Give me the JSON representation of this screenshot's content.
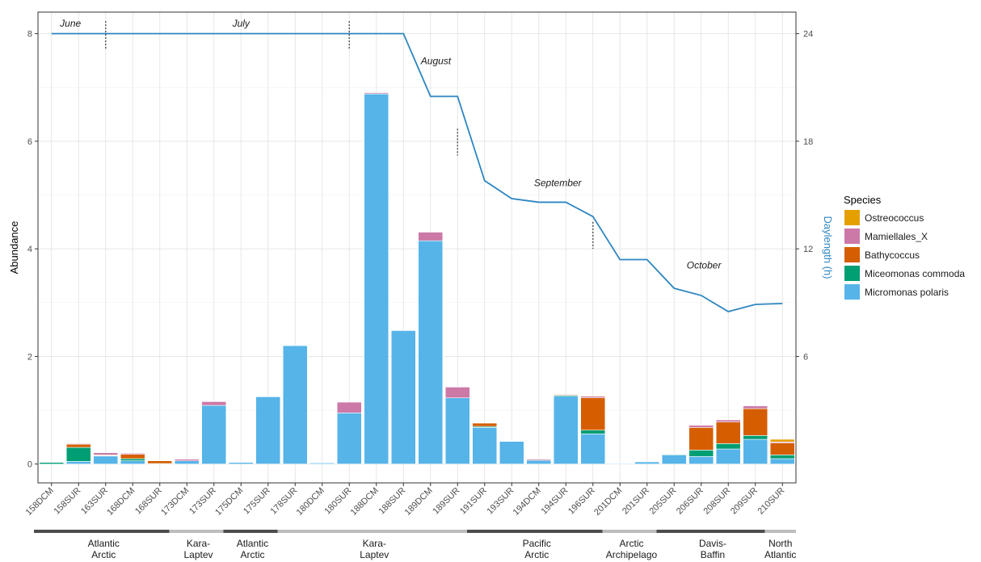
{
  "chart_data": {
    "type": "bar",
    "stacked": true,
    "categories": [
      "158DCM",
      "158SUR",
      "163SUR",
      "168DCM",
      "168SUR",
      "173DCM",
      "173SUR",
      "175DCM",
      "175SUR",
      "178SUR",
      "180DCM",
      "180SUR",
      "188DCM",
      "188SUR",
      "189DCM",
      "189SUR",
      "191SUR",
      "193SUR",
      "194DCM",
      "194SUR",
      "196SUR",
      "201DCM",
      "201SUR",
      "205SUR",
      "206SUR",
      "208SUR",
      "209SUR",
      "210SUR"
    ],
    "series": [
      {
        "name": "Micromonas polaris",
        "color": "#56b4e9",
        "values": [
          0,
          0.05,
          0.15,
          0.06,
          0,
          0.06,
          1.09,
          0.03,
          1.25,
          2.2,
          0.02,
          0.95,
          6.88,
          2.48,
          4.15,
          1.23,
          0.68,
          0.42,
          0.07,
          1.26,
          0.56,
          0.01,
          0.04,
          0.17,
          0.14,
          0.28,
          0.46,
          0.1
        ]
      },
      {
        "name": "Miceomonas commoda",
        "color": "#009e73",
        "values": [
          0.03,
          0.26,
          0.01,
          0.04,
          0.01,
          0,
          0,
          0,
          0,
          0,
          0,
          0,
          0,
          0,
          0,
          0,
          0.02,
          0,
          0,
          0.02,
          0.07,
          0,
          0,
          0.01,
          0.12,
          0.1,
          0.07,
          0.07
        ]
      },
      {
        "name": "Bathycoccus",
        "color": "#d55e00",
        "values": [
          0,
          0.06,
          0.01,
          0.08,
          0.05,
          0,
          0,
          0,
          0,
          0,
          0,
          0,
          0,
          0,
          0,
          0,
          0.06,
          0,
          0,
          0.01,
          0.6,
          0,
          0,
          0,
          0.42,
          0.4,
          0.5,
          0.22
        ]
      },
      {
        "name": "Mamiellales_X",
        "color": "#cc79a7",
        "values": [
          0,
          0.01,
          0.04,
          0.02,
          0,
          0.03,
          0.07,
          0,
          0,
          0,
          0,
          0.2,
          0.02,
          0,
          0.16,
          0.2,
          0,
          0,
          0.02,
          0.01,
          0.03,
          0,
          0,
          0,
          0.04,
          0.04,
          0.05,
          0.02
        ]
      },
      {
        "name": "Ostreococcus",
        "color": "#e69f00",
        "values": [
          0,
          0,
          0,
          0,
          0,
          0,
          0,
          0,
          0,
          0,
          0,
          0,
          0,
          0,
          0,
          0,
          0,
          0,
          0,
          0,
          0.01,
          0,
          0,
          0,
          0,
          0,
          0,
          0.05
        ]
      }
    ],
    "daylength": {
      "label": "Daylength (h)",
      "color": "#2e86c1",
      "values": [
        24,
        24,
        24,
        24,
        24,
        24,
        24,
        24,
        24,
        24,
        24,
        24,
        24,
        24,
        20.5,
        20.5,
        15.8,
        14.8,
        14.6,
        14.6,
        13.8,
        11.4,
        11.4,
        9.8,
        9.4,
        8.5,
        8.9,
        8.95
      ]
    },
    "ylabel": "Abundance",
    "ylim": [
      -0.35,
      8.4
    ],
    "yticks": [
      0,
      2,
      4,
      6,
      8
    ],
    "y2label": "Daylength (h)",
    "y2ticks": [
      6,
      12,
      18,
      24
    ],
    "y2lim": [
      -1.05,
      25.2
    ],
    "grid": true,
    "legend": {
      "title": "Species",
      "position": "right",
      "items": [
        "Ostreococcus",
        "Mamiellales_X",
        "Bathycoccus",
        "Miceomonas commoda",
        "Micromonas polaris"
      ]
    },
    "months": [
      {
        "label": "June",
        "at": 0.7,
        "value_h": 24.4
      },
      {
        "label": "July",
        "at": 7.0,
        "value_h": 24.4
      },
      {
        "label": "August",
        "at": 14.2,
        "value_h": 22.3
      },
      {
        "label": "September",
        "at": 18.7,
        "value_h": 15.5
      },
      {
        "label": "October",
        "at": 24.1,
        "value_h": 10.9
      }
    ],
    "month_dividers": [
      {
        "at": 2.5,
        "from_h": 23.1,
        "to_h": 24.7
      },
      {
        "at": 11.5,
        "from_h": 23.1,
        "to_h": 24.7
      },
      {
        "at": 15.5,
        "from_h": 17.2,
        "to_h": 18.7
      },
      {
        "at": 20.5,
        "from_h": 12.0,
        "to_h": 13.5
      }
    ],
    "regions": [
      {
        "lines": [
          "Atlantic",
          "Arctic"
        ],
        "start": 0,
        "end": 4,
        "shade": "dark"
      },
      {
        "lines": [
          "Kara-",
          "Laptev"
        ],
        "start": 5,
        "end": 6,
        "shade": "light"
      },
      {
        "lines": [
          "Atlantic",
          "Arctic"
        ],
        "start": 7,
        "end": 8,
        "shade": "dark"
      },
      {
        "lines": [
          "Kara-",
          "Laptev"
        ],
        "start": 9,
        "end": 15,
        "shade": "light"
      },
      {
        "lines": [
          "Pacific",
          "Arctic"
        ],
        "start": 16,
        "end": 20,
        "shade": "dark"
      },
      {
        "lines": [
          "Arctic",
          "Archipelago"
        ],
        "start": 21,
        "end": 22,
        "shade": "light"
      },
      {
        "lines": [
          "Davis-",
          "Baffin"
        ],
        "start": 23,
        "end": 26,
        "shade": "dark"
      },
      {
        "lines": [
          "North",
          "Atlantic"
        ],
        "start": 27,
        "end": 27,
        "shade": "light"
      }
    ]
  }
}
